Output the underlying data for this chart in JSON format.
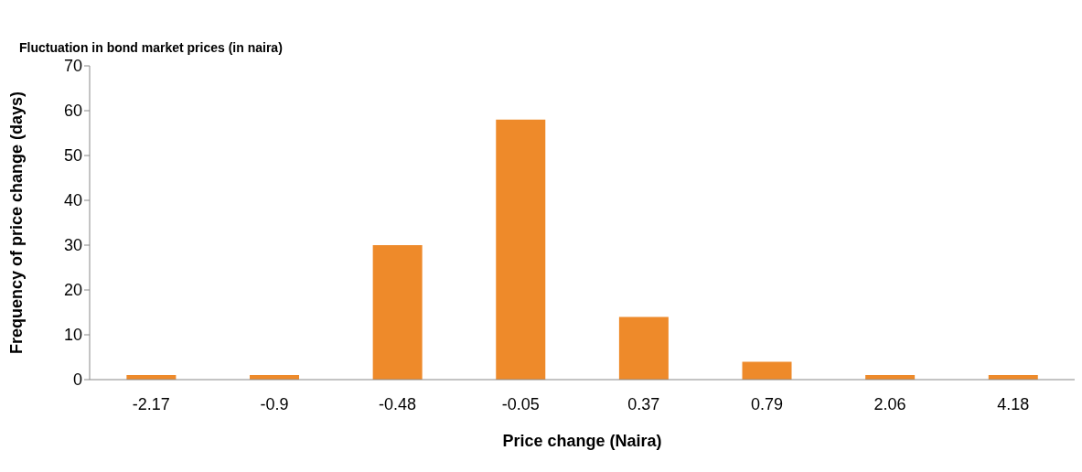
{
  "chart_data": {
    "type": "bar",
    "title": "Fluctuation in bond market prices (in naira)",
    "xlabel": "Price change (Naira)",
    "ylabel": "Frequency of price change  (days)",
    "categories": [
      "-2.17",
      "-0.9",
      "-0.48",
      "-0.05",
      "0.37",
      "0.79",
      "2.06",
      "4.18"
    ],
    "values": [
      1,
      1,
      30,
      58,
      14,
      4,
      1,
      1
    ],
    "color": "#ee8a2a",
    "ylim": [
      0,
      70
    ],
    "yticks": [
      0,
      10,
      20,
      30,
      40,
      50,
      60,
      70
    ],
    "grid": false,
    "legend": false
  }
}
